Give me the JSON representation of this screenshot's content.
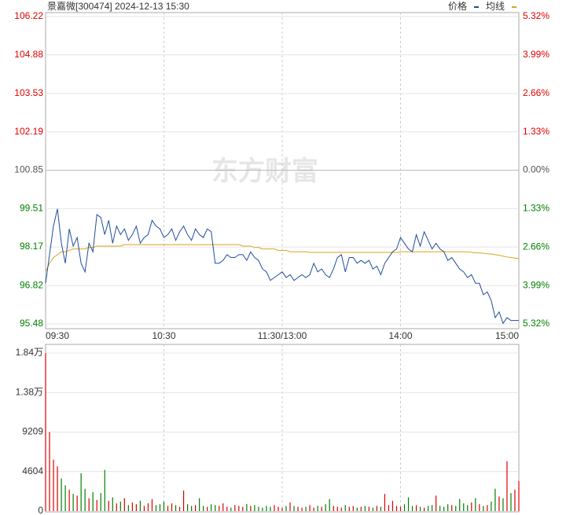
{
  "chart_data": [
    {
      "type": "line",
      "title": "景嘉微[300474] 2024-12-13 15:30",
      "watermark": "东方财富",
      "up_color": "#e00000",
      "down_color": "#008000",
      "flat_color": "#555555",
      "x": [
        0,
        2,
        4,
        6,
        8,
        10,
        12,
        14,
        16,
        18,
        20,
        22,
        24,
        26,
        28,
        30,
        32,
        34,
        36,
        38,
        40,
        42,
        44,
        46,
        48,
        50,
        52,
        54,
        56,
        58,
        60,
        62,
        64,
        66,
        68,
        70,
        72,
        74,
        76,
        78,
        80,
        82,
        84,
        86,
        88,
        90,
        92,
        94,
        96,
        98,
        100,
        102,
        104,
        106,
        108,
        110,
        112,
        114,
        116,
        118,
        120,
        122,
        124,
        126,
        128,
        130,
        132,
        134,
        136,
        138,
        140,
        142,
        144,
        146,
        148,
        150,
        152,
        154,
        156,
        158,
        160,
        162,
        164,
        166,
        168,
        170,
        172,
        174,
        176,
        178,
        180,
        182,
        184,
        186,
        188,
        190,
        192,
        194,
        196,
        198,
        200,
        202,
        204,
        206,
        208,
        210,
        212,
        214,
        216,
        218,
        220,
        222,
        224,
        226,
        228,
        230,
        232,
        234,
        236,
        238,
        240
      ],
      "xlim": [
        0,
        240
      ],
      "xticks": [
        {
          "value": 0,
          "label": "09:30"
        },
        {
          "value": 60,
          "label": "10:30"
        },
        {
          "value": 120,
          "label": "11:30/13:00"
        },
        {
          "value": 180,
          "label": "14:00"
        },
        {
          "value": 240,
          "label": "15:00"
        }
      ],
      "ylim": [
        95.48,
        106.22
      ],
      "yticks": [
        95.48,
        96.82,
        98.17,
        99.51,
        100.85,
        102.19,
        103.53,
        104.88,
        106.22
      ],
      "y2lim": [
        -5.32,
        5.32
      ],
      "y2ticks": [
        {
          "value": -5.32,
          "label": "5.32%"
        },
        {
          "value": -3.99,
          "label": "3.99%"
        },
        {
          "value": -2.66,
          "label": "2.66%"
        },
        {
          "value": -1.33,
          "label": "1.33%"
        },
        {
          "value": 0,
          "label": "0.00%"
        },
        {
          "value": 1.33,
          "label": "1.33%"
        },
        {
          "value": 2.66,
          "label": "2.66%"
        },
        {
          "value": 3.99,
          "label": "3.99%"
        },
        {
          "value": 5.32,
          "label": "5.32%"
        }
      ],
      "grid": true,
      "series": [
        {
          "name": "价格",
          "color": "#1f4e9c",
          "values": [
            96.9,
            97.9,
            98.9,
            99.5,
            98.3,
            97.6,
            98.8,
            98.2,
            98.5,
            97.6,
            97.3,
            98.3,
            98.0,
            99.3,
            99.2,
            98.6,
            99.1,
            98.3,
            98.9,
            98.6,
            98.8,
            98.4,
            98.6,
            98.9,
            98.3,
            98.5,
            98.6,
            99.1,
            98.9,
            98.8,
            98.5,
            98.6,
            98.8,
            98.4,
            98.7,
            98.9,
            98.6,
            98.4,
            98.8,
            98.6,
            98.5,
            98.8,
            98.7,
            97.6,
            97.6,
            97.7,
            97.9,
            97.8,
            97.8,
            97.9,
            97.9,
            97.7,
            98.0,
            97.8,
            97.7,
            97.4,
            97.3,
            97.0,
            97.1,
            97.2,
            97.3,
            97.1,
            97.2,
            97.0,
            97.1,
            97.2,
            97.1,
            97.2,
            97.6,
            97.3,
            97.4,
            97.2,
            97.1,
            97.4,
            97.8,
            97.9,
            97.3,
            97.8,
            97.8,
            97.6,
            97.7,
            97.6,
            97.7,
            97.4,
            97.5,
            97.2,
            97.6,
            97.8,
            98.0,
            98.1,
            98.5,
            98.3,
            98.1,
            98.0,
            98.6,
            98.2,
            98.7,
            98.4,
            98.1,
            98.3,
            98.1,
            98.0,
            97.7,
            97.8,
            97.6,
            97.4,
            97.3,
            97.1,
            97.2,
            96.9,
            96.9,
            96.5,
            96.6,
            96.3,
            95.7,
            95.9,
            95.5,
            95.7,
            95.6,
            95.6,
            95.6
          ]
        },
        {
          "name": "均线",
          "color": "#d9a520",
          "values": [
            97.3,
            97.6,
            97.8,
            97.9,
            98.0,
            98.0,
            98.05,
            98.1,
            98.1,
            98.1,
            98.1,
            98.15,
            98.15,
            98.2,
            98.2,
            98.2,
            98.2,
            98.2,
            98.2,
            98.2,
            98.25,
            98.25,
            98.25,
            98.25,
            98.25,
            98.25,
            98.25,
            98.25,
            98.25,
            98.25,
            98.25,
            98.25,
            98.25,
            98.25,
            98.25,
            98.25,
            98.25,
            98.25,
            98.25,
            98.25,
            98.25,
            98.25,
            98.25,
            98.25,
            98.25,
            98.25,
            98.25,
            98.25,
            98.25,
            98.25,
            98.2,
            98.2,
            98.2,
            98.15,
            98.15,
            98.1,
            98.1,
            98.1,
            98.1,
            98.05,
            98.05,
            98.05,
            98.0,
            98.0,
            98.0,
            98.0,
            98.0,
            97.98,
            97.98,
            97.98,
            97.98,
            97.98,
            97.98,
            97.98,
            97.98,
            97.98,
            97.98,
            97.98,
            97.98,
            97.98,
            97.98,
            97.98,
            97.98,
            97.98,
            97.98,
            97.98,
            97.98,
            97.98,
            97.98,
            97.98,
            98.0,
            98.0,
            98.0,
            98.0,
            98.0,
            98.0,
            98.0,
            98.0,
            98.0,
            98.0,
            98.0,
            98.0,
            98.0,
            98.0,
            98.0,
            98.0,
            98.0,
            98.0,
            97.98,
            97.97,
            97.96,
            97.95,
            97.93,
            97.92,
            97.9,
            97.88,
            97.85,
            97.82,
            97.8,
            97.78,
            97.76
          ]
        }
      ]
    },
    {
      "type": "bar",
      "x": [
        0,
        2,
        4,
        6,
        8,
        10,
        12,
        14,
        16,
        18,
        20,
        22,
        24,
        26,
        28,
        30,
        32,
        34,
        36,
        38,
        40,
        42,
        44,
        46,
        48,
        50,
        52,
        54,
        56,
        58,
        60,
        62,
        64,
        66,
        68,
        70,
        72,
        74,
        76,
        78,
        80,
        82,
        84,
        86,
        88,
        90,
        92,
        94,
        96,
        98,
        100,
        102,
        104,
        106,
        108,
        110,
        112,
        114,
        116,
        118,
        120,
        122,
        124,
        126,
        128,
        130,
        132,
        134,
        136,
        138,
        140,
        142,
        144,
        146,
        148,
        150,
        152,
        154,
        156,
        158,
        160,
        162,
        164,
        166,
        168,
        170,
        172,
        174,
        176,
        178,
        180,
        182,
        184,
        186,
        188,
        190,
        192,
        194,
        196,
        198,
        200,
        202,
        204,
        206,
        208,
        210,
        212,
        214,
        216,
        218,
        220,
        222,
        224,
        226,
        228,
        230,
        232,
        234,
        236,
        238,
        240
      ],
      "xlim": [
        0,
        240
      ],
      "values": [
        18400,
        9200,
        6000,
        5200,
        3800,
        3000,
        2500,
        2000,
        1800,
        4400,
        2600,
        1500,
        2200,
        1300,
        2100,
        4800,
        1200,
        1600,
        900,
        1100,
        1500,
        700,
        1000,
        800,
        1200,
        600,
        900,
        1400,
        700,
        800,
        1100,
        600,
        900,
        700,
        500,
        2400,
        800,
        600,
        700,
        1500,
        600,
        500,
        800,
        700,
        600,
        900,
        500,
        400,
        700,
        600,
        500,
        800,
        600,
        700,
        500,
        400,
        600,
        500,
        700,
        500,
        400,
        600,
        1000,
        600,
        500,
        400,
        500,
        700,
        400,
        600,
        500,
        800,
        1400,
        600,
        500,
        400,
        700,
        500,
        600,
        400,
        500,
        600,
        500,
        400,
        600,
        500,
        2000,
        700,
        1200,
        600,
        500,
        800,
        1600,
        600,
        700,
        500,
        400,
        600,
        700,
        1800,
        600,
        500,
        800,
        700,
        600,
        1400,
        900,
        700,
        1000,
        1500,
        800,
        600,
        700,
        1100,
        2600,
        1700,
        1500,
        5800,
        2100,
        2500,
        3500
      ],
      "ylim": [
        0,
        18418
      ],
      "yticks": [
        0,
        4604,
        9209,
        {
          "value": 13813,
          "label": "1.38万"
        },
        {
          "value": 18418,
          "label": "1.84万"
        }
      ],
      "grid": true
    }
  ]
}
